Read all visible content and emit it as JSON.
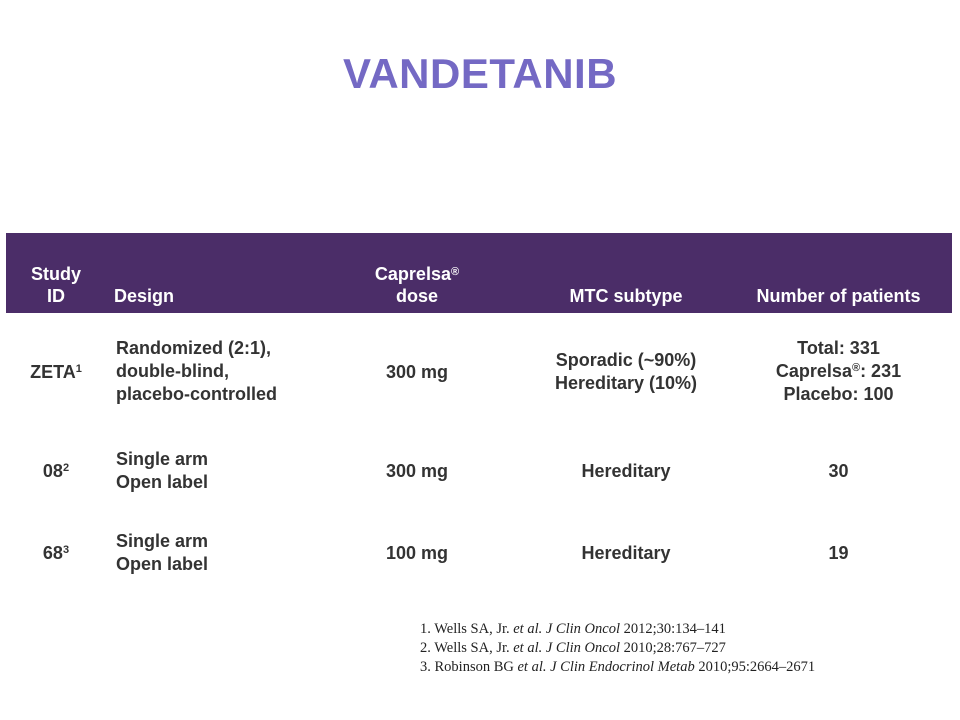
{
  "title": "VANDETANIB",
  "table": {
    "headers": {
      "study_id": "Study ID",
      "design": "Design",
      "dose_main": "Caprelsa",
      "dose_sup": "®",
      "dose_line2": "dose",
      "subtype": "MTC subtype",
      "patients": "Number of patients"
    },
    "rows": [
      {
        "study_id": "ZETA",
        "study_sup": "1",
        "design": [
          "Randomized (2:1),",
          "double-blind,",
          "placebo-controlled"
        ],
        "dose": "300 mg",
        "subtype": [
          "Sporadic (~90%)",
          "Hereditary (10%)"
        ],
        "patients_total": "Total: 331",
        "patients_caprelsa_prefix": "Caprelsa",
        "patients_caprelsa_sup": "®",
        "patients_caprelsa_value": ": 231",
        "patients_placebo": "Placebo: 100"
      },
      {
        "study_id": "08",
        "study_sup": "2",
        "design": [
          "Single arm",
          "Open label"
        ],
        "dose": "300 mg",
        "subtype": "Hereditary",
        "patients": "30"
      },
      {
        "study_id": "68",
        "study_sup": "3",
        "design": [
          "Single arm",
          "Open label"
        ],
        "dose": "100 mg",
        "subtype": "Hereditary",
        "patients": "19"
      }
    ]
  },
  "references": [
    {
      "num": "1.",
      "authors": "Wells SA, Jr.",
      "etal": "et al.",
      "journal": "J Clin Oncol",
      "cite": "2012;30:134–141"
    },
    {
      "num": "2.",
      "authors": "Wells SA, Jr.",
      "etal": "et al.",
      "journal": "J Clin Oncol",
      "cite": "2010;28:767–727"
    },
    {
      "num": "3.",
      "authors": "Robinson BG",
      "etal": "et al.",
      "journal": "J Clin Endocrinol Metab",
      "cite": "2010;95:2664–2671"
    }
  ]
}
